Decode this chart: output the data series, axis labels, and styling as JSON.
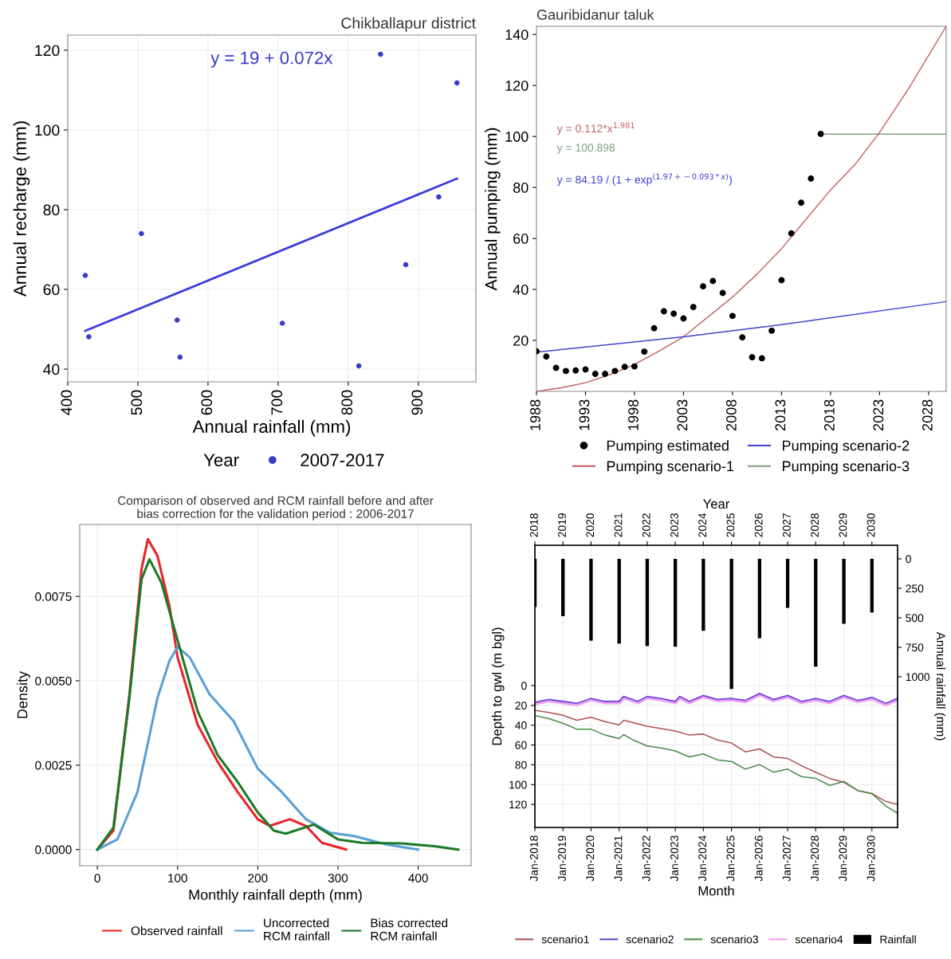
{
  "chart_data": [
    {
      "type": "scatter",
      "title": "Chikballapur district",
      "xlabel": "Annual rainfall (mm)",
      "ylabel": "Annual recharge (mm)",
      "legend_title": "Year",
      "legend": "bottom",
      "grid": true,
      "xlim": [
        400,
        982
      ],
      "ylim": [
        36.8,
        123.8
      ],
      "xticks": [
        400,
        500,
        600,
        700,
        800,
        900
      ],
      "yticks": [
        40,
        60,
        80,
        100,
        120
      ],
      "annotations": [
        "y = 19 + 0.072x"
      ],
      "series": [
        {
          "name": "2007-2017",
          "type": "scatter",
          "marker": "circle",
          "color": "#3a3acc",
          "x": [
            425,
            430,
            505,
            556,
            560,
            706,
            815,
            846,
            882,
            929,
            955
          ],
          "values": [
            63.5,
            48.1,
            74,
            52.3,
            43,
            51.5,
            40.8,
            119,
            66.2,
            83.2,
            111.8
          ]
        },
        {
          "type": "line",
          "color": "#3b3bdb",
          "x": [
            425,
            955
          ],
          "values": [
            49.6,
            87.8
          ]
        }
      ]
    },
    {
      "type": "scatter",
      "title": "Gauribidanur taluk",
      "ylabel": "Annual pumping (mm)",
      "legend": "bottom",
      "xlim": [
        1988,
        2029.8
      ],
      "ylim": [
        0,
        143.2
      ],
      "xticks": [
        1988,
        1993,
        1998,
        2003,
        2008,
        2013,
        2018,
        2023,
        2028
      ],
      "yticks": [
        20,
        40,
        60,
        80,
        100,
        120,
        140
      ],
      "annotations": [
        "y = 0.112*x$^{1.981}$",
        "y = 100.898",
        "y = 84.19 / (1 + exp$^{(1.97+−0.093*x)}$)"
      ],
      "series": [
        {
          "name": "Pumping estimated",
          "type": "scatter",
          "marker": "circle",
          "color": "#000000",
          "x": [
            1988,
            1989,
            1990,
            1991,
            1992,
            1993,
            1994,
            1995,
            1996,
            1997,
            1998,
            1999,
            2000,
            2001,
            2002,
            2003,
            2004,
            2005,
            2006,
            2007,
            2008,
            2009,
            2010,
            2011,
            2012,
            2013,
            2014,
            2015,
            2016,
            2017
          ],
          "values": [
            15.7,
            13.7,
            9.2,
            8,
            8.2,
            8.6,
            6.9,
            6.9,
            8,
            9.6,
            9.8,
            15.6,
            24.8,
            31.4,
            30.5,
            28.6,
            33.1,
            41.2,
            43.3,
            38.6,
            29.6,
            21.2,
            13.4,
            13,
            23.8,
            43.6,
            62,
            74,
            83.5,
            101
          ]
        },
        {
          "name": "Pumping scenario-1",
          "type": "line",
          "color": "#c06060",
          "x": [
            1988,
            1990.5,
            1993,
            1995.5,
            1998,
            2000.5,
            2003,
            2008,
            2010.5,
            2013,
            2018,
            2020.5,
            2023,
            2026,
            2029.8
          ],
          "values": [
            0,
            1.4,
            3.4,
            6.6,
            10.6,
            15.8,
            21.4,
            37,
            46,
            56,
            79,
            89,
            101.6,
            119,
            143.2
          ]
        },
        {
          "name": "Pumping scenario-2",
          "type": "line",
          "color": "#4040d0",
          "x": [
            1988,
            2003,
            2013,
            2029.8
          ],
          "values": [
            15.4,
            21.4,
            26.2,
            35.2
          ]
        },
        {
          "name": "Pumping scenario-3",
          "type": "line",
          "color": "#80a080",
          "x": [
            2017,
            2029.8
          ],
          "values": [
            100.9,
            100.9
          ]
        }
      ]
    },
    {
      "type": "line",
      "title": "Comparison of observed and RCM rainfall before and after\nbias correction for the validation period : 2006-2017",
      "xlabel": "Monthly rainfall depth (mm)",
      "ylabel": "Density",
      "legend": "bottom",
      "grid": true,
      "xlim": [
        -22,
        466
      ],
      "ylim": [
        -0.00048,
        0.00963
      ],
      "xticks": [
        0,
        100,
        200,
        300,
        400
      ],
      "yticks": [
        {
          "value": 0,
          "label": "0.0000"
        },
        {
          "value": 0.0025,
          "label": "0.0025"
        },
        {
          "value": 0.005,
          "label": "0.0050"
        },
        {
          "value": 0.0075,
          "label": "0.0075"
        }
      ],
      "series": [
        {
          "name": "Observed rainfall",
          "color": "#e8242a",
          "x": [
            0,
            20,
            40,
            55,
            63,
            75,
            90,
            100,
            125,
            150,
            175,
            200,
            215,
            240,
            260,
            280,
            310
          ],
          "values": [
            0,
            0.00056,
            0.0046,
            0.0083,
            0.0092,
            0.0087,
            0.0072,
            0.0057,
            0.0037,
            0.0026,
            0.0017,
            0.0009,
            0.0007,
            0.0009,
            0.0007,
            0.0002,
            0
          ]
        },
        {
          "name": "Uncorrected\nRCM rainfall",
          "color": "#5a9fd4",
          "x": [
            0,
            25,
            50,
            75,
            90,
            100,
            115,
            140,
            170,
            200,
            230,
            260,
            290,
            320,
            360,
            400
          ],
          "values": [
            0,
            0.0003,
            0.0017,
            0.0045,
            0.0056,
            0.006,
            0.0057,
            0.0046,
            0.0038,
            0.0024,
            0.0017,
            0.0009,
            0.0005,
            0.0004,
            0.00015,
            0
          ]
        },
        {
          "name": "Bias corrected\nRCM rainfall",
          "color": "#1a7a2a",
          "x": [
            0,
            20,
            40,
            55,
            65,
            80,
            100,
            125,
            150,
            175,
            200,
            220,
            235,
            270,
            300,
            330,
            380,
            420,
            450
          ],
          "values": [
            0,
            0.00065,
            0.0045,
            0.008,
            0.0086,
            0.0079,
            0.0062,
            0.0041,
            0.0028,
            0.002,
            0.0011,
            0.00056,
            0.00047,
            0.00074,
            0.0003,
            0.0002,
            0.00018,
            0.0001,
            0
          ]
        }
      ]
    },
    {
      "type": "line",
      "xlabel": "Month",
      "x2label": "Year",
      "ylabel": "Depth to gwl (m bgl)",
      "y2label": "Annual rainfall (mm)",
      "legend": "bottom",
      "grid": true,
      "xlim": [
        "2018-01",
        "2030-12"
      ],
      "x2lim": [
        "2018-01",
        "2030-12"
      ],
      "xticks": [
        {
          "value": "2018-01",
          "label": "Jan-2018"
        },
        {
          "value": "2019-01",
          "label": "Jan-2019"
        },
        {
          "value": "2020-01",
          "label": "Jan-2020"
        },
        {
          "value": "2021-01",
          "label": "Jan-2021"
        },
        {
          "value": "2022-01",
          "label": "Jan-2022"
        },
        {
          "value": "2023-01",
          "label": "Jan-2023"
        },
        {
          "value": "2024-01",
          "label": "Jan-2024"
        },
        {
          "value": "2025-01",
          "label": "Jan-2025"
        },
        {
          "value": "2026-01",
          "label": "Jan-2026"
        },
        {
          "value": "2027-01",
          "label": "Jan-2027"
        },
        {
          "value": "2028-01",
          "label": "Jan-2028"
        },
        {
          "value": "2029-01",
          "label": "Jan-2029"
        },
        {
          "value": "2030-01",
          "label": "Jan-2030"
        }
      ],
      "x2ticks": [
        {
          "value": "2018",
          "label": "2018"
        },
        {
          "value": "2019",
          "label": "2019"
        },
        {
          "value": "2020",
          "label": "2020"
        },
        {
          "value": "2021",
          "label": "2021"
        },
        {
          "value": "2022",
          "label": "2022"
        },
        {
          "value": "2023",
          "label": "2023"
        },
        {
          "value": "2024",
          "label": "2024"
        },
        {
          "value": "2025",
          "label": "2025"
        },
        {
          "value": "2026",
          "label": "2026"
        },
        {
          "value": "2027",
          "label": "2027"
        },
        {
          "value": "2028",
          "label": "2028"
        },
        {
          "value": "2029",
          "label": "2029"
        },
        {
          "value": "2030",
          "label": "2030"
        }
      ],
      "ylim": [
        143.3,
        -141.7
      ],
      "yticks": [
        0,
        20,
        40,
        60,
        80,
        100,
        120
      ],
      "y2lim": [
        2278,
        -115
      ],
      "y2ticks": [
        0,
        250,
        500,
        750,
        1000
      ],
      "series": [
        {
          "name": "scenario1",
          "color": "#b05050",
          "x": [
            "2018-01",
            "2018-07",
            "2019-01",
            "2019-07",
            "2020-01",
            "2020-07",
            "2021-01",
            "2021-03",
            "2022-01",
            "2023-01",
            "2023-07",
            "2024-01",
            "2024-07",
            "2025-01",
            "2025-07",
            "2026-01",
            "2026-07",
            "2027-01",
            "2027-07",
            "2028-01",
            "2028-07",
            "2029-01",
            "2029-07",
            "2030-01",
            "2030-07",
            "2030-12"
          ],
          "values": [
            25,
            27.2,
            30,
            35,
            32,
            36.5,
            39.6,
            35,
            41,
            45.8,
            50,
            49,
            55,
            58,
            67,
            64,
            72,
            73.6,
            81,
            87.5,
            93.7,
            97.7,
            106,
            109,
            117,
            120
          ]
        },
        {
          "name": "scenario2",
          "color": "#5a4ad8",
          "x": [
            "2018-01",
            "2018-07",
            "2019-01",
            "2019-07",
            "2020-01",
            "2020-07",
            "2021-01",
            "2021-03",
            "2021-09",
            "2022-01",
            "2022-07",
            "2023-01",
            "2023-03",
            "2023-07",
            "2024-01",
            "2024-07",
            "2025-01",
            "2025-07",
            "2026-01",
            "2026-07",
            "2027-01",
            "2027-07",
            "2028-01",
            "2028-07",
            "2029-01",
            "2029-07",
            "2030-01",
            "2030-07",
            "2030-12"
          ],
          "values": [
            17,
            14,
            16,
            18,
            13,
            16,
            16,
            11,
            16,
            11,
            13,
            16,
            11,
            16,
            10,
            14,
            13,
            15,
            8,
            14,
            10,
            16,
            13,
            16,
            10,
            15,
            12,
            18,
            13
          ]
        },
        {
          "name": "scenario3",
          "color": "#4a8a4a",
          "x": [
            "2018-01",
            "2018-07",
            "2019-01",
            "2019-07",
            "2020-01",
            "2020-07",
            "2021-01",
            "2021-03",
            "2021-07",
            "2022-01",
            "2022-07",
            "2023-01",
            "2023-07",
            "2024-01",
            "2024-07",
            "2025-01",
            "2025-07",
            "2026-01",
            "2026-07",
            "2027-01",
            "2027-07",
            "2028-01",
            "2028-07",
            "2029-01",
            "2029-07",
            "2030-01",
            "2030-07",
            "2030-12"
          ],
          "values": [
            30.3,
            33.4,
            38,
            44,
            44,
            50,
            53.5,
            49.5,
            55,
            61,
            63,
            66,
            72,
            69,
            75,
            76.7,
            84.4,
            79.8,
            87.5,
            84.4,
            92,
            93.7,
            100.8,
            96.8,
            106,
            109,
            121.6,
            129
          ]
        },
        {
          "name": "scenario4",
          "color": "#f0a0f0",
          "x": [
            "2018-01",
            "2018-07",
            "2019-01",
            "2019-07",
            "2020-01",
            "2020-07",
            "2021-01",
            "2021-03",
            "2021-09",
            "2022-01",
            "2022-07",
            "2023-01",
            "2023-03",
            "2023-07",
            "2024-01",
            "2024-07",
            "2025-01",
            "2025-07",
            "2026-01",
            "2026-07",
            "2027-01",
            "2027-07",
            "2028-01",
            "2028-07",
            "2029-01",
            "2029-07",
            "2030-01",
            "2030-07",
            "2030-12"
          ],
          "values": [
            18,
            15,
            17,
            19,
            14,
            17,
            17,
            12,
            17,
            12,
            14,
            17,
            12,
            17,
            11,
            15,
            14,
            16,
            9,
            15,
            11,
            17,
            14,
            17,
            11,
            16,
            13,
            19,
            14
          ]
        },
        {
          "name": "Rainfall",
          "type": "bar",
          "axis": "y2",
          "color": "#000000",
          "x": [
            "2018",
            "2019",
            "2020",
            "2021",
            "2022",
            "2023",
            "2024",
            "2025",
            "2026",
            "2027",
            "2028",
            "2029",
            "2030"
          ],
          "values": [
            408,
            486,
            694,
            719,
            740,
            745,
            610,
            1104,
            673,
            416,
            914,
            551,
            455
          ]
        }
      ]
    }
  ]
}
